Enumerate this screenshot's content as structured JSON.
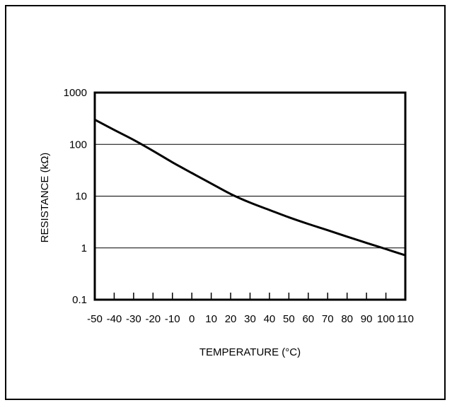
{
  "chart_data": {
    "type": "line",
    "xlabel": "TEMPERATURE (°C)",
    "ylabel": "RESISTANCE (kΩ)",
    "xlim": [
      -50,
      110
    ],
    "ylim": [
      0.1,
      1000
    ],
    "y_scale": "log",
    "x_ticks": [
      "-50",
      "-40",
      "-30",
      "-20",
      "-10",
      "0",
      "10",
      "20",
      "30",
      "40",
      "50",
      "60",
      "70",
      "80",
      "90",
      "100",
      "110"
    ],
    "y_ticks": [
      "1000",
      "100",
      "10",
      "1",
      "0.1"
    ],
    "grid": "horizontal",
    "series": [
      {
        "x": [
          -50,
          -40,
          -30,
          -20,
          -10,
          0,
          10,
          20,
          30,
          40,
          50,
          60,
          70,
          80,
          90,
          100,
          110
        ],
        "y": [
          300,
          190,
          122,
          75,
          45,
          28,
          17.5,
          11,
          7.5,
          5.4,
          3.9,
          2.9,
          2.2,
          1.65,
          1.25,
          0.95,
          0.72
        ]
      }
    ],
    "colors": {
      "line": "#000000",
      "grid": "#000000"
    }
  }
}
